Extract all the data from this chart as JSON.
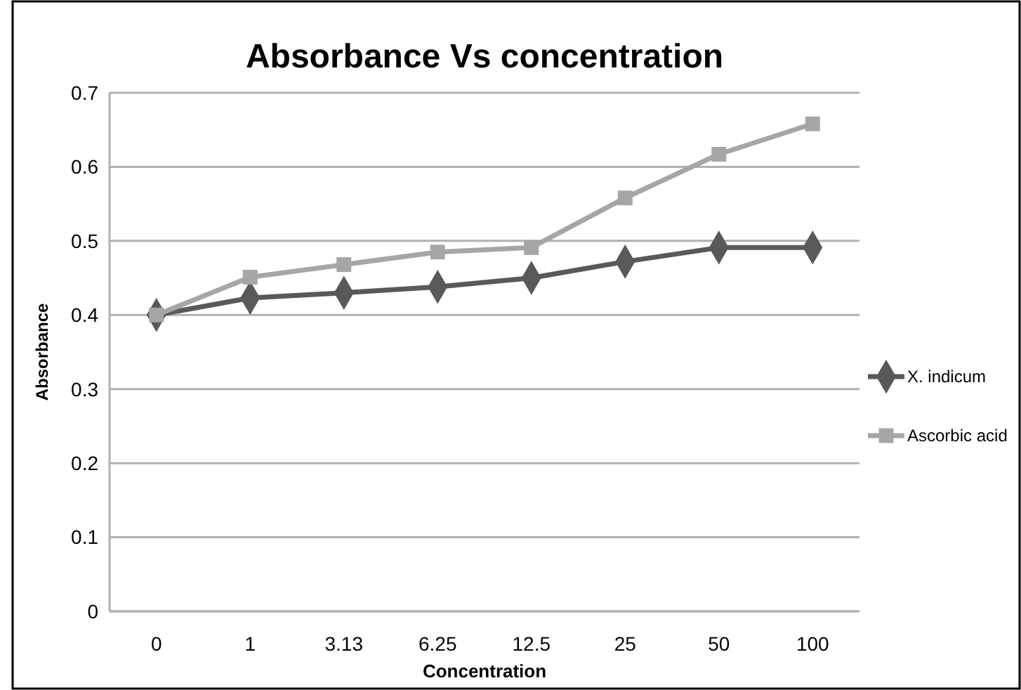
{
  "chart_data": {
    "type": "line",
    "title": "Absorbance Vs  concentration",
    "xlabel": "Concentration",
    "ylabel": "Absorbance",
    "categories": [
      "0",
      "1",
      "3.13",
      "6.25",
      "12.5",
      "25",
      "50",
      "100"
    ],
    "series": [
      {
        "name": "X. indicum",
        "color": "#595959",
        "marker": "diamond",
        "values": [
          0.4,
          0.423,
          0.43,
          0.438,
          0.45,
          0.472,
          0.491,
          0.491
        ]
      },
      {
        "name": "Ascorbic acid",
        "color": "#a6a6a6",
        "marker": "square",
        "values": [
          0.4,
          0.451,
          0.468,
          0.485,
          0.491,
          0.558,
          0.617,
          0.658
        ]
      }
    ],
    "ylim": [
      0,
      0.7
    ],
    "yticks": [
      0,
      0.1,
      0.2,
      0.3,
      0.4,
      0.5,
      0.6,
      0.7
    ],
    "grid": "y",
    "legend": "right"
  }
}
